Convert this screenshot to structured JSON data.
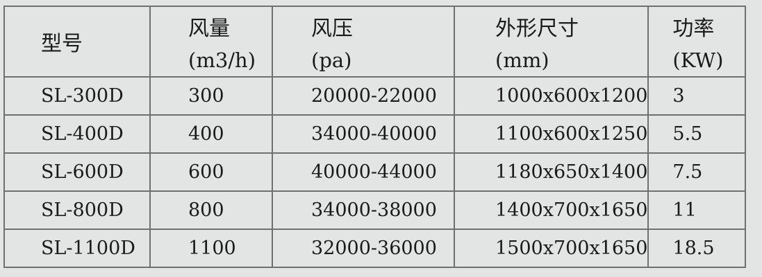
{
  "header": [
    {
      "label": "型号",
      "unit": ""
    },
    {
      "label": "风量",
      "unit": "(m3/h)"
    },
    {
      "label": "风压",
      "unit": "(pa)"
    },
    {
      "label": "外形尺寸",
      "unit": "(mm)"
    },
    {
      "label": "功率",
      "unit": "(KW)"
    }
  ],
  "rows": [
    [
      "SL-300D",
      "300",
      "20000-22000",
      "1000x600x1200",
      "3"
    ],
    [
      "SL-400D",
      "400",
      "34000-40000",
      "1100x600x1250",
      "5.5"
    ],
    [
      "SL-600D",
      "600",
      "40000-44000",
      "1180x650x1400",
      "7.5"
    ],
    [
      "SL-800D",
      "800",
      "34000-38000",
      "1400x700x1650",
      "11"
    ],
    [
      "SL-1100D",
      "1100",
      "32000-36000",
      "1500x700x1650",
      "18.5"
    ]
  ]
}
